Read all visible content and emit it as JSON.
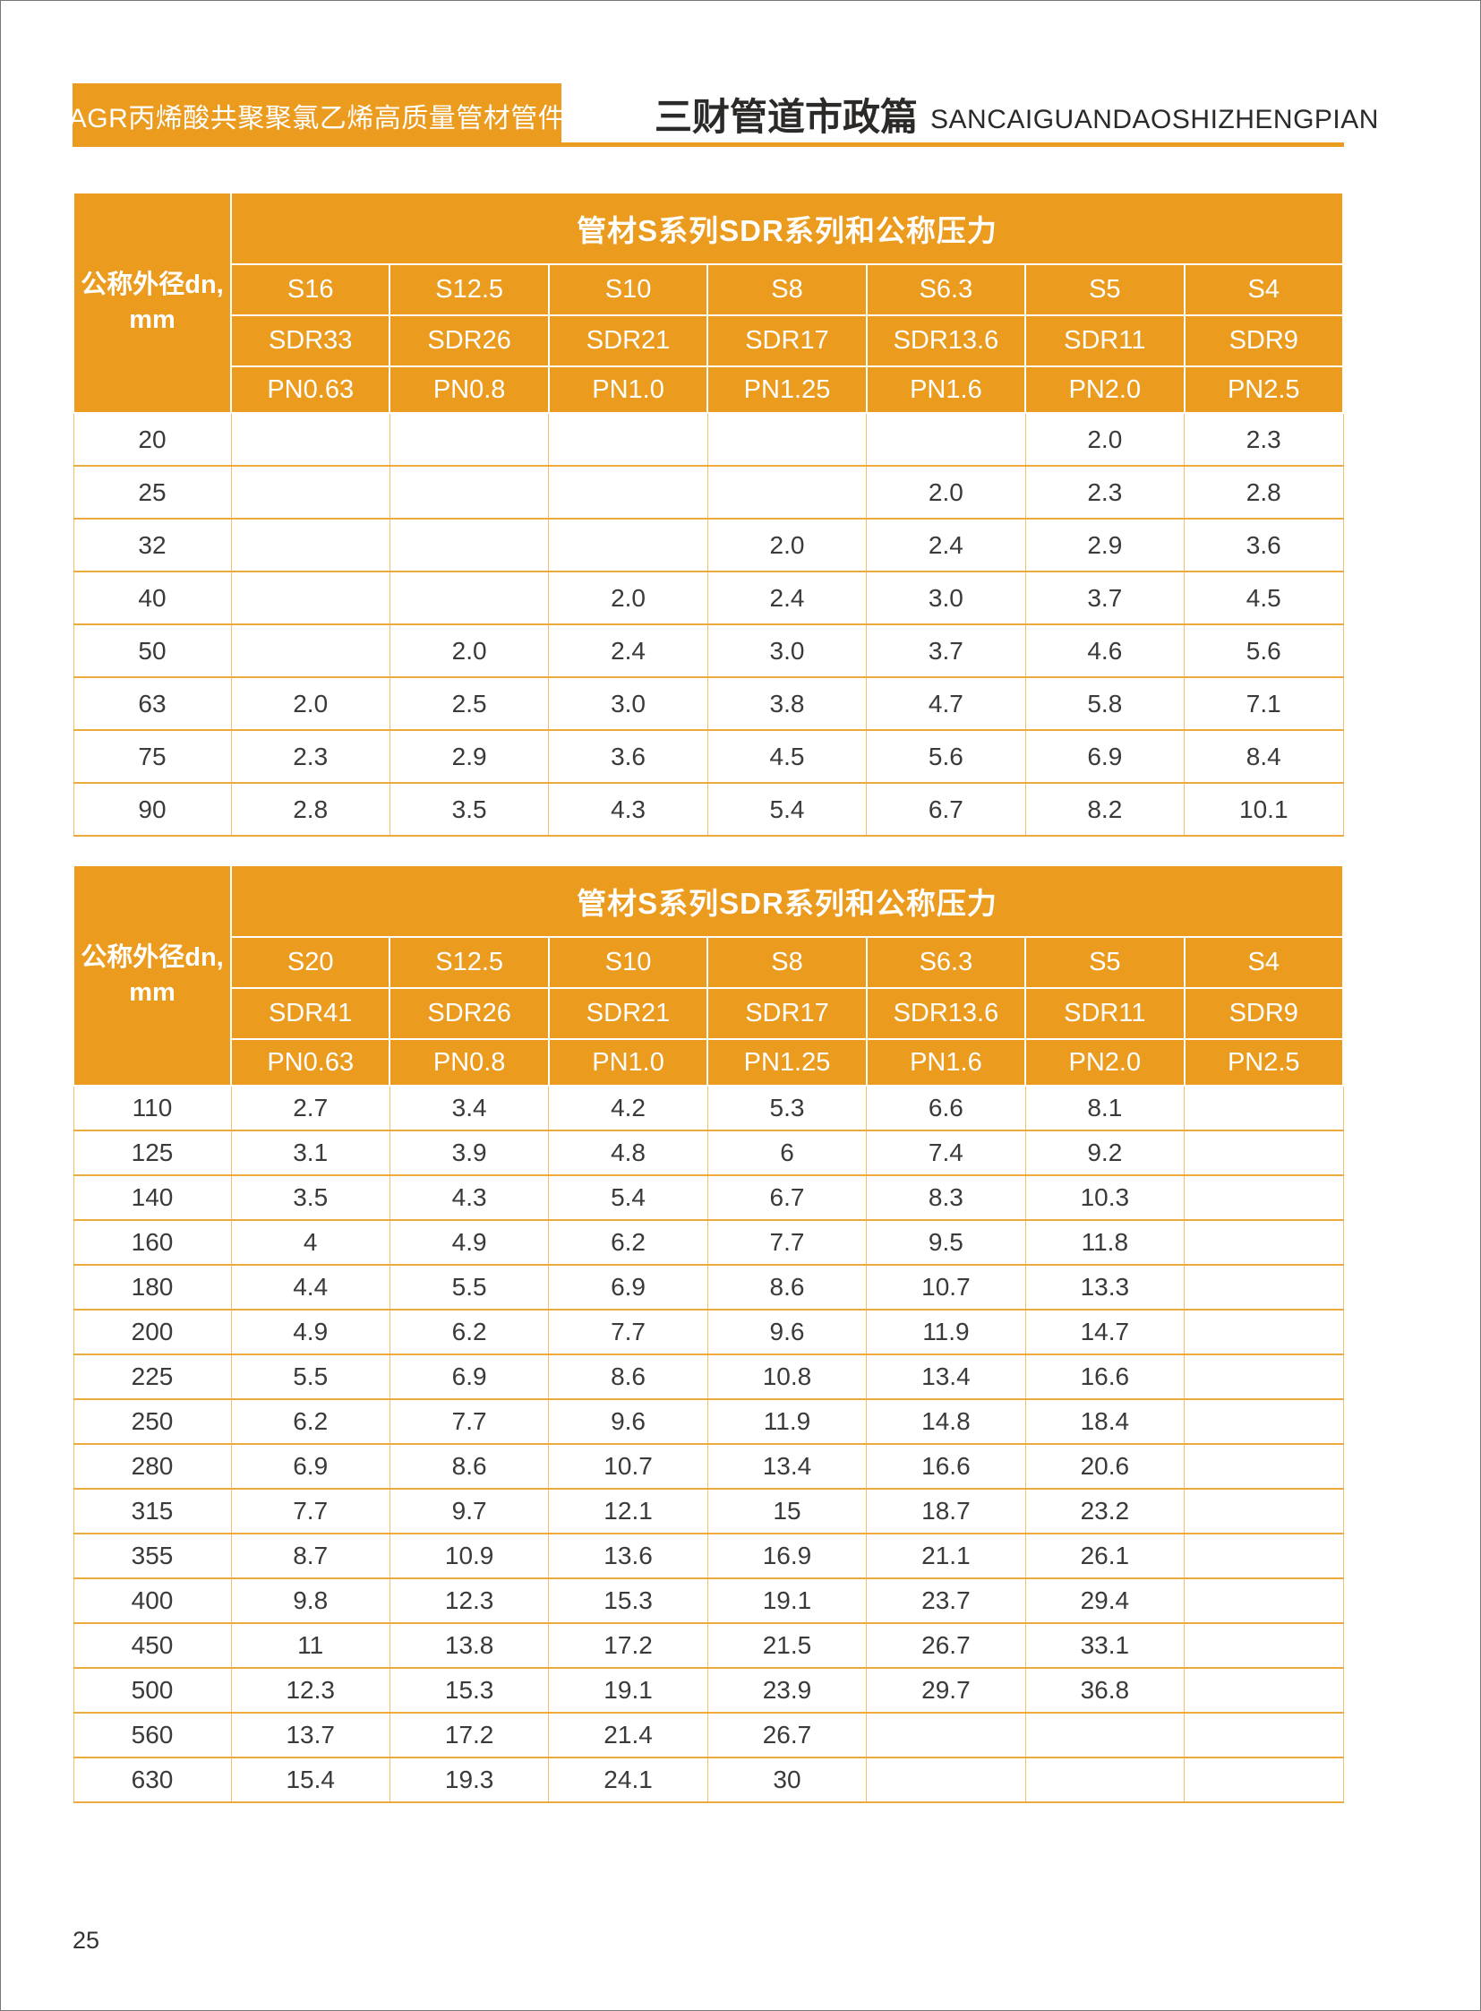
{
  "header": {
    "left_banner": "AGR丙烯酸共聚聚氯乙烯高质量管材管件",
    "title_cn": "三财管道市政篇",
    "title_en": "SANCAIGUANDAOSHIZHENGPIAN"
  },
  "colors": {
    "accent_orange": "#EB9B1E",
    "grid_orange": "#ECA93E",
    "text_dark": "#3A3A3A"
  },
  "page": {
    "number": "25"
  },
  "tables": [
    {
      "title": "管材S系列SDR系列和公称压力",
      "row_header_line1": "公称外径dn,",
      "row_header_line2": "mm",
      "s": [
        "S16",
        "S12.5",
        "S10",
        "S8",
        "S6.3",
        "S5",
        "S4"
      ],
      "sdr": [
        "SDR33",
        "SDR26",
        "SDR21",
        "SDR17",
        "SDR13.6",
        "SDR11",
        "SDR9"
      ],
      "pn": [
        "PN0.63",
        "PN0.8",
        "PN1.0",
        "PN1.25",
        "PN1.6",
        "PN2.0",
        "PN2.5"
      ],
      "rows": [
        {
          "dn": "20",
          "values": [
            "",
            "",
            "",
            "",
            "",
            "2.0",
            "2.3"
          ]
        },
        {
          "dn": "25",
          "values": [
            "",
            "",
            "",
            "",
            "2.0",
            "2.3",
            "2.8"
          ]
        },
        {
          "dn": "32",
          "values": [
            "",
            "",
            "",
            "2.0",
            "2.4",
            "2.9",
            "3.6"
          ]
        },
        {
          "dn": "40",
          "values": [
            "",
            "",
            "2.0",
            "2.4",
            "3.0",
            "3.7",
            "4.5"
          ]
        },
        {
          "dn": "50",
          "values": [
            "",
            "2.0",
            "2.4",
            "3.0",
            "3.7",
            "4.6",
            "5.6"
          ]
        },
        {
          "dn": "63",
          "values": [
            "2.0",
            "2.5",
            "3.0",
            "3.8",
            "4.7",
            "5.8",
            "7.1"
          ]
        },
        {
          "dn": "75",
          "values": [
            "2.3",
            "2.9",
            "3.6",
            "4.5",
            "5.6",
            "6.9",
            "8.4"
          ]
        },
        {
          "dn": "90",
          "values": [
            "2.8",
            "3.5",
            "4.3",
            "5.4",
            "6.7",
            "8.2",
            "10.1"
          ]
        }
      ]
    },
    {
      "title": "管材S系列SDR系列和公称压力",
      "row_header_line1": "公称外径dn,",
      "row_header_line2": "mm",
      "s": [
        "S20",
        "S12.5",
        "S10",
        "S8",
        "S6.3",
        "S5",
        "S4"
      ],
      "sdr": [
        "SDR41",
        "SDR26",
        "SDR21",
        "SDR17",
        "SDR13.6",
        "SDR11",
        "SDR9"
      ],
      "pn": [
        "PN0.63",
        "PN0.8",
        "PN1.0",
        "PN1.25",
        "PN1.6",
        "PN2.0",
        "PN2.5"
      ],
      "rows": [
        {
          "dn": "110",
          "values": [
            "2.7",
            "3.4",
            "4.2",
            "5.3",
            "6.6",
            "8.1",
            ""
          ]
        },
        {
          "dn": "125",
          "values": [
            "3.1",
            "3.9",
            "4.8",
            "6",
            "7.4",
            "9.2",
            ""
          ]
        },
        {
          "dn": "140",
          "values": [
            "3.5",
            "4.3",
            "5.4",
            "6.7",
            "8.3",
            "10.3",
            ""
          ]
        },
        {
          "dn": "160",
          "values": [
            "4",
            "4.9",
            "6.2",
            "7.7",
            "9.5",
            "11.8",
            ""
          ]
        },
        {
          "dn": "180",
          "values": [
            "4.4",
            "5.5",
            "6.9",
            "8.6",
            "10.7",
            "13.3",
            ""
          ]
        },
        {
          "dn": "200",
          "values": [
            "4.9",
            "6.2",
            "7.7",
            "9.6",
            "11.9",
            "14.7",
            ""
          ]
        },
        {
          "dn": "225",
          "values": [
            "5.5",
            "6.9",
            "8.6",
            "10.8",
            "13.4",
            "16.6",
            ""
          ]
        },
        {
          "dn": "250",
          "values": [
            "6.2",
            "7.7",
            "9.6",
            "11.9",
            "14.8",
            "18.4",
            ""
          ]
        },
        {
          "dn": "280",
          "values": [
            "6.9",
            "8.6",
            "10.7",
            "13.4",
            "16.6",
            "20.6",
            ""
          ]
        },
        {
          "dn": "315",
          "values": [
            "7.7",
            "9.7",
            "12.1",
            "15",
            "18.7",
            "23.2",
            ""
          ]
        },
        {
          "dn": "355",
          "values": [
            "8.7",
            "10.9",
            "13.6",
            "16.9",
            "21.1",
            "26.1",
            ""
          ]
        },
        {
          "dn": "400",
          "values": [
            "9.8",
            "12.3",
            "15.3",
            "19.1",
            "23.7",
            "29.4",
            ""
          ]
        },
        {
          "dn": "450",
          "values": [
            "11",
            "13.8",
            "17.2",
            "21.5",
            "26.7",
            "33.1",
            ""
          ]
        },
        {
          "dn": "500",
          "values": [
            "12.3",
            "15.3",
            "19.1",
            "23.9",
            "29.7",
            "36.8",
            ""
          ]
        },
        {
          "dn": "560",
          "values": [
            "13.7",
            "17.2",
            "21.4",
            "26.7",
            "",
            "",
            ""
          ]
        },
        {
          "dn": "630",
          "values": [
            "15.4",
            "19.3",
            "24.1",
            "30",
            "",
            "",
            ""
          ]
        }
      ]
    }
  ]
}
